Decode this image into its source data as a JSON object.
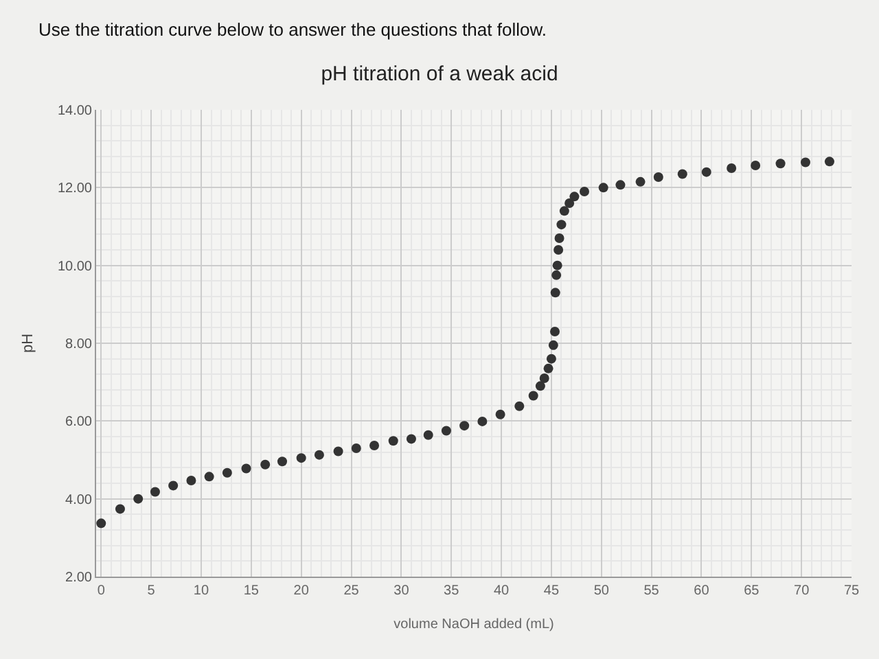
{
  "chart_data": {
    "type": "scatter",
    "title": "pH titration of a weak acid",
    "xlabel": "volume NaOH added (mL)",
    "ylabel": "pH",
    "annotations": [
      "Use the titration curve below to answer the questions that follow."
    ],
    "x": [
      0,
      1.9,
      3.7,
      5.4,
      7.2,
      9,
      10.8,
      12.6,
      14.5,
      16.4,
      18.1,
      20,
      21.8,
      23.7,
      25.5,
      27.3,
      29.2,
      31,
      32.7,
      34.5,
      36.3,
      38.1,
      39.9,
      41.8,
      43.2,
      43.9,
      44.3,
      44.7,
      45,
      45.2,
      45.35,
      45.4,
      45.5,
      45.6,
      45.7,
      45.8,
      46,
      46.3,
      46.8,
      47.3,
      48.3,
      50.2,
      51.9,
      53.9,
      55.7,
      58.1,
      60.5,
      63,
      65.4,
      67.9,
      70.4,
      72.8
    ],
    "series": [
      {
        "color": "#333333",
        "values": [
          3.37,
          3.74,
          4.0,
          4.18,
          4.34,
          4.47,
          4.57,
          4.67,
          4.78,
          4.88,
          4.96,
          5.05,
          5.13,
          5.22,
          5.3,
          5.37,
          5.49,
          5.54,
          5.64,
          5.75,
          5.88,
          5.99,
          6.17,
          6.38,
          6.65,
          6.9,
          7.1,
          7.35,
          7.6,
          7.95,
          8.3,
          9.3,
          9.75,
          10.0,
          10.4,
          10.7,
          11.05,
          11.4,
          11.6,
          11.77,
          11.9,
          12.0,
          12.07,
          12.15,
          12.27,
          12.35,
          12.4,
          12.5,
          12.57,
          12.62,
          12.65,
          12.67
        ]
      }
    ],
    "xlim": [
      -0.5,
      75
    ],
    "xticks": [
      0,
      5,
      10,
      15,
      20,
      25,
      30,
      35,
      40,
      45,
      50,
      55,
      60,
      65,
      70,
      75
    ],
    "ylim": [
      2,
      14
    ],
    "yticks": [
      {
        "value": 2,
        "label": "2.00"
      },
      {
        "value": 4,
        "label": "4.00"
      },
      {
        "value": 6,
        "label": "6.00"
      },
      {
        "value": 8,
        "label": "8.00"
      },
      {
        "value": 10,
        "label": "10.00"
      },
      {
        "value": 12,
        "label": "12.00"
      },
      {
        "value": 14,
        "label": "14.00"
      }
    ],
    "grid": true,
    "marker": "circle",
    "legend": false
  }
}
